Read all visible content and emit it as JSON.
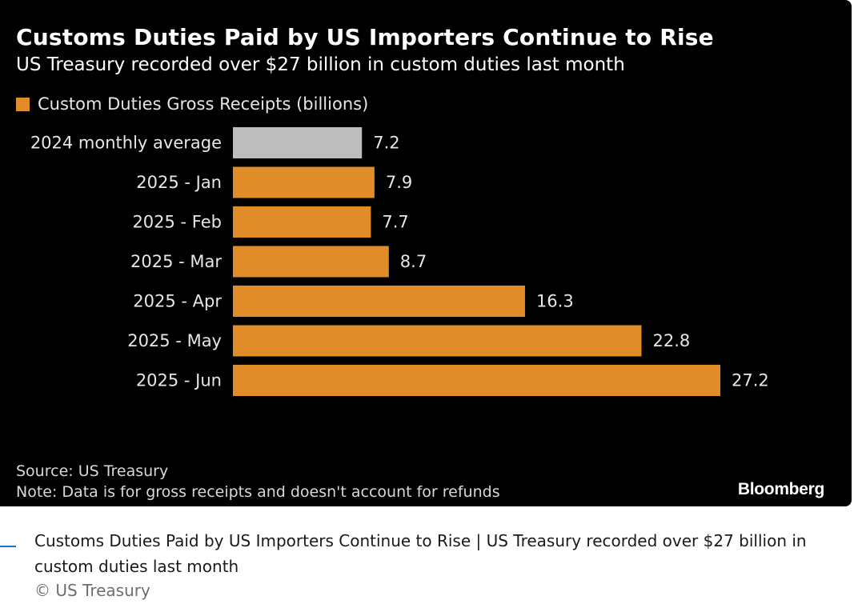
{
  "chart_data": {
    "type": "bar",
    "orientation": "horizontal",
    "title": "Customs Duties Paid by US Importers Continue to Rise",
    "subtitle": "US Treasury recorded over $27 billion in custom duties last month",
    "legend": {
      "label": "Custom Duties Gross Receipts (billions)",
      "color": "#e08c28"
    },
    "categories": [
      "2024 monthly average",
      "2025 - Jan",
      "2025 - Feb",
      "2025 - Mar",
      "2025 - Apr",
      "2025 - May",
      "2025 - Jun"
    ],
    "values": [
      7.2,
      7.9,
      7.7,
      8.7,
      16.3,
      22.8,
      27.2
    ],
    "value_labels": [
      "7.2",
      "7.9",
      "7.7",
      "8.7",
      "16.3",
      "22.8",
      "27.2"
    ],
    "bar_colors": [
      "#bdbdbd",
      "#e08c28",
      "#e08c28",
      "#e08c28",
      "#e08c28",
      "#e08c28",
      "#e08c28"
    ],
    "xlim": [
      0,
      27.2
    ],
    "xlabel": "",
    "ylabel": "",
    "grid": false,
    "legend_position": "top-left",
    "source": "Source: US Treasury",
    "note": "Note: Data is for gross receipts and doesn't account for refunds",
    "brand": "Bloomberg"
  },
  "caption": {
    "text": "Customs Duties Paid by US Importers Continue to Rise | US Treasury recorded over $27 billion in custom duties last month",
    "credit": "© US Treasury"
  },
  "colors": {
    "panel_background": "#000000",
    "accent": "#e08c28",
    "baseline_bar": "#bdbdbd",
    "caption_accent": "#1a73c7"
  }
}
